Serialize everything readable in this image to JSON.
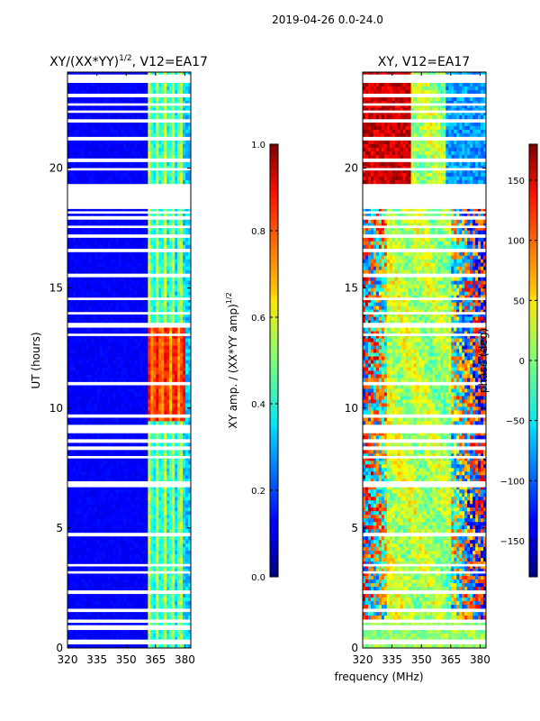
{
  "figure": {
    "suptitle": "2019-04-26 0.0-24.0",
    "shared_xlabel": "frequency (MHz)"
  },
  "chart_data": [
    {
      "type": "heatmap",
      "id": "amp",
      "title_main": "XY/(XX*YY)",
      "title_sup": "1/2",
      "title_tail": ", V12=EA17",
      "xlabel": "frequency (MHz)",
      "ylabel": "UT (hours)",
      "x_range": [
        320,
        383
      ],
      "y_range": [
        0,
        24
      ],
      "x_ticks": [
        320,
        335,
        350,
        365,
        380
      ],
      "y_ticks": [
        0,
        5,
        10,
        15,
        20
      ],
      "colorbar": {
        "label_main": "XY amp. / (XX*YY amp)",
        "label_sup": "1/2",
        "range": [
          0.0,
          1.0
        ],
        "ticks": [
          "0.0",
          "0.2",
          "0.4",
          "0.6",
          "0.8",
          "1.0"
        ],
        "tick_values": [
          0.0,
          0.2,
          0.4,
          0.6,
          0.8,
          1.0
        ]
      }
    },
    {
      "type": "heatmap",
      "id": "phase",
      "title_main": "XY, V12=EA17",
      "title_sup": "",
      "title_tail": "",
      "xlabel": "frequency (MHz)",
      "ylabel": "",
      "x_range": [
        320,
        383
      ],
      "y_range": [
        0,
        24
      ],
      "x_ticks": [
        320,
        335,
        350,
        365,
        380
      ],
      "y_ticks": [
        0,
        5,
        10,
        15,
        20
      ],
      "colorbar": {
        "label_main": "phase (deg)",
        "label_sup": "",
        "range": [
          -180,
          180
        ],
        "ticks": [
          "−150",
          "−100",
          "−50",
          "0",
          "50",
          "100",
          "150"
        ],
        "tick_values": [
          -150,
          -100,
          -50,
          0,
          50,
          100,
          150
        ]
      }
    }
  ],
  "data_gaps_ut_hours": [
    [
      0.2,
      0.35
    ],
    [
      0.8,
      0.95
    ],
    [
      1.05,
      1.15
    ],
    [
      1.5,
      1.6
    ],
    [
      2.3,
      2.4
    ],
    [
      3.1,
      3.2
    ],
    [
      3.4,
      3.5
    ],
    [
      4.7,
      4.8
    ],
    [
      6.7,
      6.95
    ],
    [
      7.9,
      8.0
    ],
    [
      8.3,
      8.4
    ],
    [
      8.6,
      8.7
    ],
    [
      8.95,
      9.3
    ],
    [
      9.6,
      9.7
    ],
    [
      11.0,
      11.05
    ],
    [
      13.0,
      13.1
    ],
    [
      13.4,
      13.55
    ],
    [
      13.9,
      14.0
    ],
    [
      14.5,
      14.6
    ],
    [
      15.5,
      15.6
    ],
    [
      16.5,
      16.6
    ],
    [
      17.1,
      17.2
    ],
    [
      17.5,
      17.6
    ],
    [
      17.9,
      18.0
    ],
    [
      18.1,
      18.2
    ],
    [
      18.3,
      19.3
    ],
    [
      19.9,
      20.0
    ],
    [
      20.3,
      20.4
    ],
    [
      21.2,
      21.3
    ],
    [
      21.9,
      22.0
    ],
    [
      22.3,
      22.4
    ],
    [
      22.6,
      22.7
    ],
    [
      23.0,
      23.1
    ],
    [
      23.6,
      23.9
    ]
  ]
}
